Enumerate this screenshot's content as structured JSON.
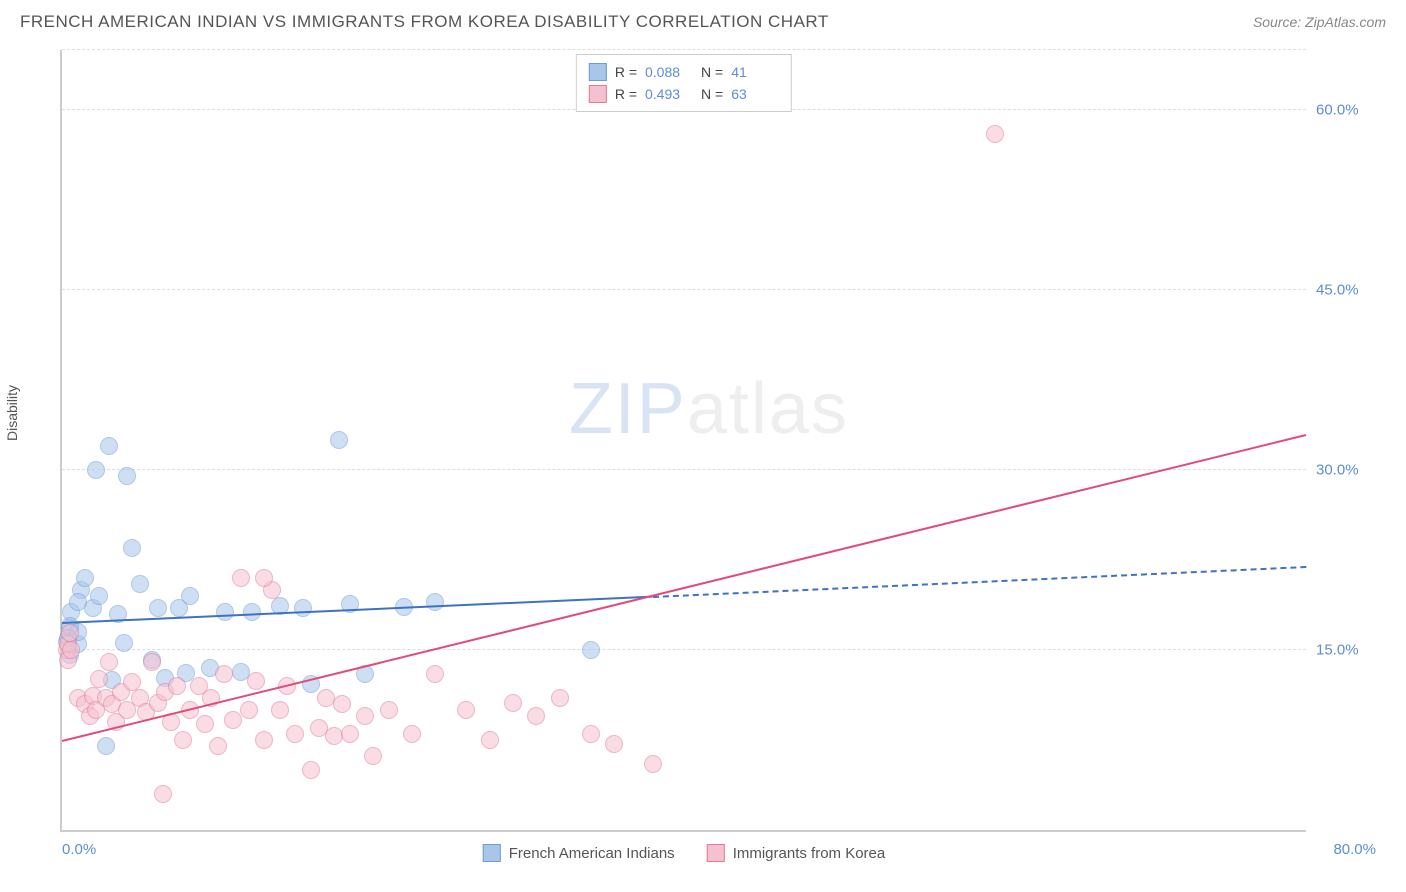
{
  "header": {
    "title": "FRENCH AMERICAN INDIAN VS IMMIGRANTS FROM KOREA DISABILITY CORRELATION CHART",
    "source": "Source: ZipAtlas.com"
  },
  "ylabel": "Disability",
  "watermark": {
    "part1": "ZIP",
    "part2": "atlas"
  },
  "chart": {
    "type": "scatter",
    "xlim": [
      0,
      80
    ],
    "ylim": [
      0,
      65
    ],
    "background_color": "#ffffff",
    "grid_color": "#dddddd",
    "axis_color": "#cccccc",
    "tick_color": "#5b8dd6",
    "tick_fontsize": 15,
    "yticks": [
      {
        "value": 15,
        "label": "15.0%"
      },
      {
        "value": 30,
        "label": "30.0%"
      },
      {
        "value": 45,
        "label": "45.0%"
      },
      {
        "value": 60,
        "label": "60.0%"
      }
    ],
    "xticks": [
      {
        "value": 0,
        "label": "0.0%",
        "pos": "left"
      },
      {
        "value": 80,
        "label": "80.0%",
        "pos": "right"
      }
    ],
    "point_radius": 9,
    "point_opacity": 0.55,
    "series": [
      {
        "name": "French American Indians",
        "color_fill": "#a9c6ea",
        "color_stroke": "#6b9bd8",
        "r_value": "0.088",
        "n_value": "41",
        "trend": {
          "color": "#3d72c4",
          "width": 2,
          "x1": 0,
          "y1": 17.3,
          "x2": 38,
          "y2": 19.5,
          "dash_from_x": 38,
          "x3": 80,
          "y3": 22.0
        },
        "points": [
          [
            0.5,
            16.8
          ],
          [
            0.6,
            18.2
          ],
          [
            0.5,
            17.0
          ],
          [
            1.0,
            15.5
          ],
          [
            1.0,
            16.5
          ],
          [
            0.5,
            14.6
          ],
          [
            1.2,
            20.0
          ],
          [
            1.5,
            21.0
          ],
          [
            2.0,
            18.5
          ],
          [
            2.4,
            19.5
          ],
          [
            2.2,
            30.0
          ],
          [
            3.0,
            32.0
          ],
          [
            3.2,
            12.5
          ],
          [
            3.6,
            18.0
          ],
          [
            4.2,
            29.5
          ],
          [
            4.5,
            23.5
          ],
          [
            5.0,
            20.5
          ],
          [
            5.8,
            14.2
          ],
          [
            6.2,
            18.5
          ],
          [
            6.6,
            12.7
          ],
          [
            7.5,
            18.5
          ],
          [
            8.0,
            13.1
          ],
          [
            8.2,
            19.5
          ],
          [
            9.5,
            13.5
          ],
          [
            10.5,
            18.2
          ],
          [
            11.5,
            13.2
          ],
          [
            12.2,
            18.2
          ],
          [
            14.0,
            18.7
          ],
          [
            15.5,
            18.5
          ],
          [
            16.0,
            12.2
          ],
          [
            17.8,
            32.5
          ],
          [
            18.5,
            18.8
          ],
          [
            19.5,
            13.0
          ],
          [
            22.0,
            18.6
          ],
          [
            24.0,
            19.0
          ],
          [
            34.0,
            15.0
          ],
          [
            2.8,
            7.0
          ],
          [
            1.0,
            19.0
          ],
          [
            0.3,
            15.7
          ],
          [
            0.4,
            16.0
          ],
          [
            4.0,
            15.6
          ]
        ]
      },
      {
        "name": "Immigrants from Korea",
        "color_fill": "#f6c1cf",
        "color_stroke": "#e17a99",
        "r_value": "0.493",
        "n_value": "63",
        "trend": {
          "color": "#e14b7a",
          "width": 2,
          "x1": 0,
          "y1": 7.5,
          "x2": 80,
          "y2": 33.0,
          "dash_from_x": 999
        },
        "points": [
          [
            0.3,
            15.0
          ],
          [
            0.4,
            15.5
          ],
          [
            0.4,
            14.2
          ],
          [
            0.5,
            16.4
          ],
          [
            0.6,
            15.0
          ],
          [
            1.0,
            11.0
          ],
          [
            1.5,
            10.5
          ],
          [
            1.8,
            9.5
          ],
          [
            2.0,
            11.2
          ],
          [
            2.2,
            10.0
          ],
          [
            2.4,
            12.6
          ],
          [
            2.8,
            11.0
          ],
          [
            3.0,
            14.0
          ],
          [
            3.2,
            10.5
          ],
          [
            3.5,
            9.0
          ],
          [
            3.8,
            11.5
          ],
          [
            4.2,
            10.0
          ],
          [
            4.5,
            12.3
          ],
          [
            5.0,
            11.0
          ],
          [
            5.4,
            9.8
          ],
          [
            5.8,
            14.0
          ],
          [
            6.2,
            10.6
          ],
          [
            6.6,
            11.5
          ],
          [
            7.0,
            9.0
          ],
          [
            7.4,
            12.0
          ],
          [
            7.8,
            7.5
          ],
          [
            8.2,
            10.0
          ],
          [
            8.8,
            12.0
          ],
          [
            9.2,
            8.8
          ],
          [
            9.6,
            11.0
          ],
          [
            10.0,
            7.0
          ],
          [
            10.4,
            13.0
          ],
          [
            11.0,
            9.2
          ],
          [
            11.5,
            21.0
          ],
          [
            12.0,
            10.0
          ],
          [
            12.5,
            12.4
          ],
          [
            13.0,
            7.5
          ],
          [
            13.5,
            20.0
          ],
          [
            14.0,
            10.0
          ],
          [
            14.5,
            12.0
          ],
          [
            15.0,
            8.0
          ],
          [
            6.5,
            3.0
          ],
          [
            16.5,
            8.5
          ],
          [
            17.0,
            11.0
          ],
          [
            17.5,
            7.8
          ],
          [
            18.0,
            10.5
          ],
          [
            18.5,
            8.0
          ],
          [
            19.5,
            9.5
          ],
          [
            20.0,
            6.2
          ],
          [
            21.0,
            10.0
          ],
          [
            22.5,
            8.0
          ],
          [
            24.0,
            13.0
          ],
          [
            26.0,
            10.0
          ],
          [
            27.5,
            7.5
          ],
          [
            29.0,
            10.6
          ],
          [
            30.5,
            9.5
          ],
          [
            32.0,
            11.0
          ],
          [
            34.0,
            8.0
          ],
          [
            35.5,
            7.2
          ],
          [
            38.0,
            5.5
          ],
          [
            16.0,
            5.0
          ],
          [
            13.0,
            21.0
          ],
          [
            60.0,
            58.0
          ]
        ]
      }
    ],
    "legend_bottom": [
      {
        "label": "French American Indians",
        "fill": "#a9c6ea",
        "stroke": "#6b9bd8"
      },
      {
        "label": "Immigrants from Korea",
        "fill": "#f6c1cf",
        "stroke": "#e17a99"
      }
    ]
  }
}
